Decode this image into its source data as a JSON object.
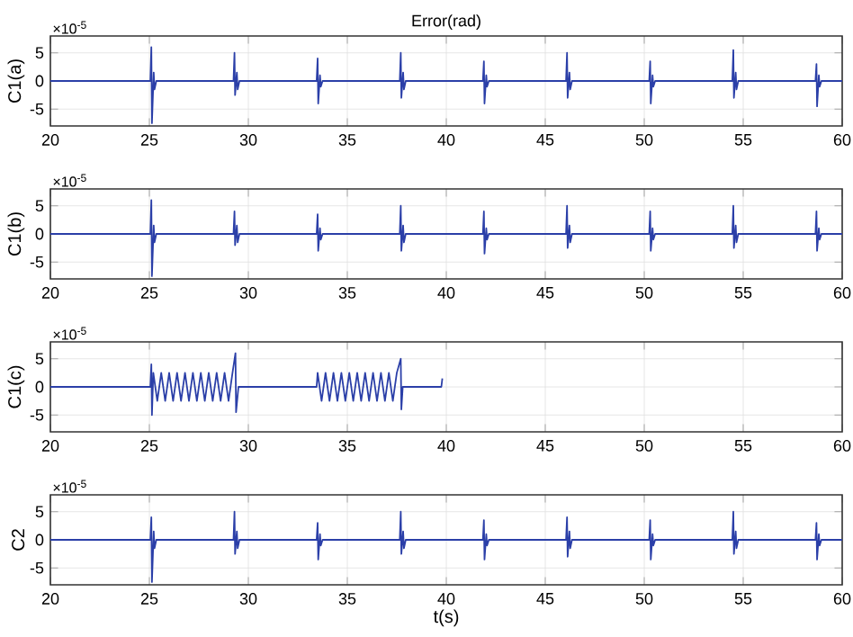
{
  "chart_data": [
    {
      "type": "line",
      "title": "Error(rad)",
      "ylabel": "C1(a)",
      "annotations": [
        "×10$^{-5}$"
      ],
      "xlim": [
        20,
        60
      ],
      "xticks": [
        20,
        25,
        30,
        35,
        40,
        45,
        50,
        55,
        60
      ],
      "ylim": [
        -8,
        8
      ],
      "yticks": [
        -5,
        0,
        5
      ],
      "grid": true,
      "x": [
        20,
        25.05,
        25.1,
        25.13,
        25.22,
        25.26,
        25.35,
        29.25,
        29.3,
        29.33,
        29.42,
        29.46,
        29.55,
        33.45,
        33.5,
        33.53,
        33.62,
        33.66,
        33.75,
        37.65,
        37.7,
        37.73,
        37.82,
        37.86,
        37.95,
        41.85,
        41.9,
        41.93,
        42.02,
        42.06,
        42.15,
        46.05,
        46.1,
        46.13,
        46.22,
        46.26,
        46.35,
        50.25,
        50.3,
        50.33,
        50.42,
        50.46,
        50.55,
        54.45,
        54.5,
        54.53,
        54.62,
        54.66,
        54.75,
        58.65,
        58.7,
        58.73,
        58.82,
        58.86,
        58.95,
        60
      ],
      "series": [
        {
          "color": "#2b3fa8",
          "values": [
            0,
            0,
            6,
            -7.5,
            1.5,
            -1.5,
            0,
            0,
            5,
            -2.5,
            1.5,
            -1.5,
            0,
            0,
            4,
            -4,
            1,
            -1,
            0,
            0,
            5,
            -3,
            1.5,
            -1.5,
            0,
            0,
            3.5,
            -4,
            1,
            -1,
            0,
            0,
            5,
            -3,
            1.5,
            -1.5,
            0,
            0,
            3.5,
            -4,
            1,
            -1,
            0,
            0,
            5.5,
            -3,
            1.5,
            -1.5,
            0,
            0,
            3,
            -4.5,
            1,
            -1,
            0,
            0
          ]
        }
      ]
    },
    {
      "type": "line",
      "ylabel": "C1(b)",
      "annotations": [
        "×10$^{-5}$"
      ],
      "xlim": [
        20,
        60
      ],
      "xticks": [
        20,
        25,
        30,
        35,
        40,
        45,
        50,
        55,
        60
      ],
      "ylim": [
        -8,
        8
      ],
      "yticks": [
        -5,
        0,
        5
      ],
      "grid": true,
      "x": [
        20,
        25.05,
        25.1,
        25.13,
        25.22,
        25.26,
        25.35,
        29.25,
        29.3,
        29.33,
        29.42,
        29.46,
        29.55,
        33.45,
        33.5,
        33.53,
        33.62,
        33.66,
        33.75,
        37.65,
        37.7,
        37.73,
        37.82,
        37.86,
        37.95,
        41.85,
        41.9,
        41.93,
        42.02,
        42.06,
        42.15,
        46.05,
        46.1,
        46.13,
        46.22,
        46.26,
        46.35,
        50.25,
        50.3,
        50.33,
        50.42,
        50.46,
        50.55,
        54.45,
        54.5,
        54.53,
        54.62,
        54.66,
        54.75,
        58.65,
        58.7,
        58.73,
        58.82,
        58.86,
        58.95,
        60
      ],
      "series": [
        {
          "color": "#2b3fa8",
          "values": [
            0,
            0,
            6,
            -7.5,
            1.5,
            -1.5,
            0,
            0,
            4,
            -2,
            1.5,
            -1.5,
            0,
            0,
            3.5,
            -3,
            1,
            -1,
            0,
            0,
            5,
            -3,
            1.5,
            -1.5,
            0,
            0,
            4,
            -3.5,
            1,
            -1,
            0,
            0,
            5,
            -2.5,
            1.5,
            -1.5,
            0,
            0,
            4,
            -3,
            1,
            -1,
            0,
            0,
            5,
            -2.5,
            1.5,
            -1.5,
            0,
            0,
            4,
            -3,
            1,
            -1,
            0,
            0
          ]
        }
      ]
    },
    {
      "type": "line",
      "ylabel": "C1(c)",
      "annotations": [
        "×10$^{-5}$"
      ],
      "xlim": [
        20,
        60
      ],
      "xticks": [
        20,
        25,
        30,
        35,
        40,
        45,
        50,
        55,
        60
      ],
      "ylim": [
        -8,
        8
      ],
      "yticks": [
        -5,
        0,
        5
      ],
      "grid": true,
      "x": [
        20,
        25.05,
        25.1,
        25.13,
        25.2,
        25.4,
        25.6,
        25.8,
        26,
        26.2,
        26.4,
        26.6,
        26.8,
        27,
        27.2,
        27.4,
        27.6,
        27.8,
        28,
        28.2,
        28.4,
        28.6,
        28.8,
        29,
        29.2,
        29.35,
        29.38,
        29.5,
        33.45,
        33.5,
        33.7,
        33.9,
        34.1,
        34.3,
        34.5,
        34.7,
        34.9,
        35.1,
        35.3,
        35.5,
        35.7,
        35.9,
        36.1,
        36.3,
        36.5,
        36.7,
        36.9,
        37.1,
        37.3,
        37.5,
        37.7,
        37.73,
        37.8,
        39.75,
        39.8
      ],
      "series": [
        {
          "color": "#2b3fa8",
          "values": [
            0,
            0,
            4,
            -5,
            2.5,
            -2.5,
            2.5,
            -2.5,
            2.5,
            -2.5,
            2.5,
            -2.5,
            2.5,
            -2.5,
            2.5,
            -2.5,
            2.5,
            -2.5,
            2.5,
            -2.5,
            2.5,
            -2.5,
            2.5,
            -2.5,
            2.5,
            6,
            -4.5,
            0,
            0,
            2.5,
            -2.5,
            2.5,
            -2.5,
            2.5,
            -2.5,
            2.5,
            -2.5,
            2.5,
            -2.5,
            2.5,
            -2.5,
            2.5,
            -2.5,
            2.5,
            -2.5,
            2.5,
            -2.5,
            2.5,
            -2.5,
            2.5,
            5,
            -4,
            0,
            0,
            1.5
          ]
        }
      ]
    },
    {
      "type": "line",
      "ylabel": "C2",
      "xlabel": "t(s)",
      "annotations": [
        "×10$^{-5}$"
      ],
      "xlim": [
        20,
        60
      ],
      "xticks": [
        20,
        25,
        30,
        35,
        40,
        45,
        50,
        55,
        60
      ],
      "ylim": [
        -8,
        8
      ],
      "yticks": [
        -5,
        0,
        5
      ],
      "grid": true,
      "x": [
        20,
        25.05,
        25.1,
        25.13,
        25.22,
        25.26,
        25.35,
        29.25,
        29.3,
        29.33,
        29.42,
        29.46,
        29.55,
        33.45,
        33.5,
        33.53,
        33.62,
        33.66,
        33.75,
        37.65,
        37.7,
        37.73,
        37.82,
        37.86,
        37.95,
        41.85,
        41.9,
        41.93,
        42.02,
        42.06,
        42.15,
        46.05,
        46.1,
        46.13,
        46.22,
        46.26,
        46.35,
        50.25,
        50.3,
        50.33,
        50.42,
        50.46,
        50.55,
        54.45,
        54.5,
        54.53,
        54.62,
        54.66,
        54.75,
        58.65,
        58.7,
        58.73,
        58.82,
        58.86,
        58.95,
        60
      ],
      "series": [
        {
          "color": "#2b3fa8",
          "values": [
            0,
            0,
            4,
            -7.5,
            1.5,
            -1.5,
            0,
            0,
            5,
            -2.5,
            1.5,
            -1.5,
            0,
            0,
            3,
            -3.5,
            1,
            -1,
            0,
            0,
            5,
            -2.5,
            1.5,
            -1.5,
            0,
            0,
            3.5,
            -3.5,
            1,
            -1,
            0,
            0,
            4,
            -3,
            1.5,
            -1.5,
            0,
            0,
            3.5,
            -3.5,
            1,
            -1,
            0,
            0,
            5,
            -2.5,
            1.5,
            -1.5,
            0,
            0,
            3,
            -3.5,
            1,
            -1,
            0,
            0
          ]
        }
      ]
    }
  ]
}
